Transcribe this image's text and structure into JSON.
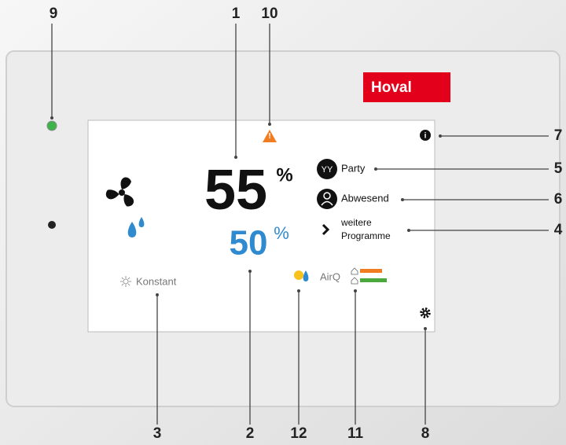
{
  "device": {
    "brand": "Hoval"
  },
  "screen": {
    "fan_level": "55",
    "fan_unit": "%",
    "humidity": "50",
    "humidity_unit": "%",
    "mode": "Konstant",
    "air_quality": "AirQ",
    "programs": [
      "Party",
      "Abwesend"
    ],
    "more_programs": [
      "weitere",
      "Programme"
    ]
  },
  "callouts": [
    "1",
    "2",
    "3",
    "4",
    "5",
    "6",
    "7",
    "8",
    "9",
    "10",
    "11",
    "12"
  ]
}
